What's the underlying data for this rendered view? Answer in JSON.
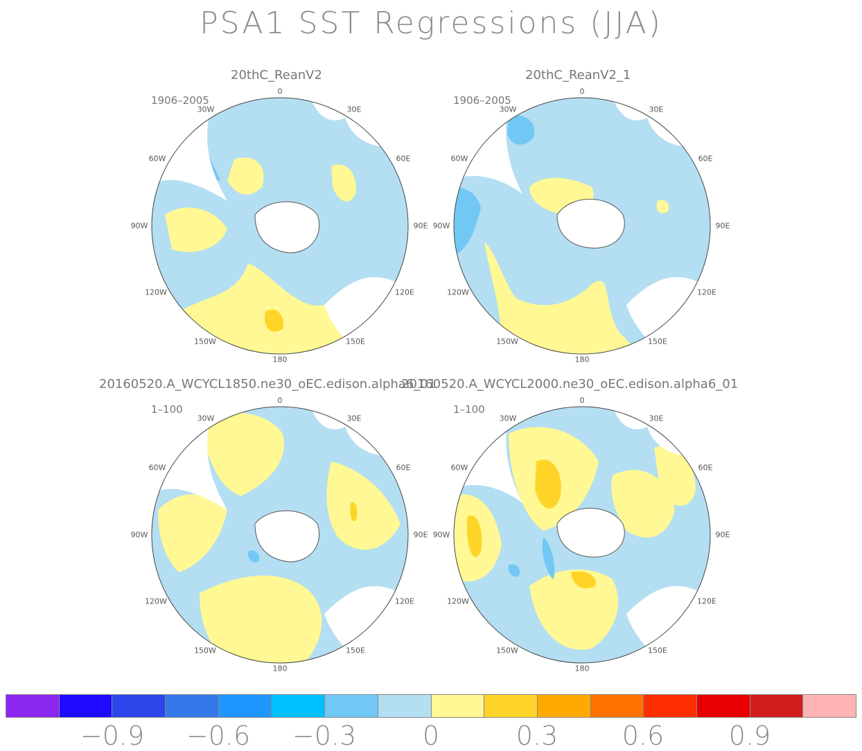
{
  "title": "PSA1 SST Regressions (JJA)",
  "colors": {
    "ocean_neutral": "#b4def2",
    "weak_positive": "#fff894",
    "moderate_positive": "#ffd428",
    "weak_negative": "#72c8f4",
    "moderate_negative": "#3ca6f0",
    "land": "#ffffff",
    "coast": "#555555"
  },
  "lon_labels": [
    "0",
    "30E",
    "60E",
    "90E",
    "120E",
    "150E",
    "180",
    "150W",
    "120W",
    "90W",
    "60W",
    "30W"
  ],
  "panels": [
    {
      "name": "20thC_ReanV2",
      "period": "1906–2005"
    },
    {
      "name": "20thC_ReanV2_1",
      "period": "1906–2005"
    },
    {
      "name": "20160520.A_WCYCL1850.ne30_oEC.edison.alpha6_01",
      "period": "1–100"
    },
    {
      "name": "20160520.A_WCYCL2000.ne30_oEC.edison.alpha6_01",
      "period": "1–100"
    }
  ],
  "colorbar": {
    "colors": [
      "#8a26f0",
      "#1e0aff",
      "#2a46e8",
      "#3478ea",
      "#1e96ff",
      "#00c0ff",
      "#72c8f4",
      "#b4def2",
      "#fff894",
      "#ffd428",
      "#ffaa00",
      "#ff7200",
      "#ff2e00",
      "#e80000",
      "#d01e1e",
      "#ffb4b4"
    ],
    "tick_labels": [
      "−0.9",
      "−0.6",
      "−0.3",
      "0",
      "0.3",
      "0.6",
      "0.9"
    ]
  }
}
